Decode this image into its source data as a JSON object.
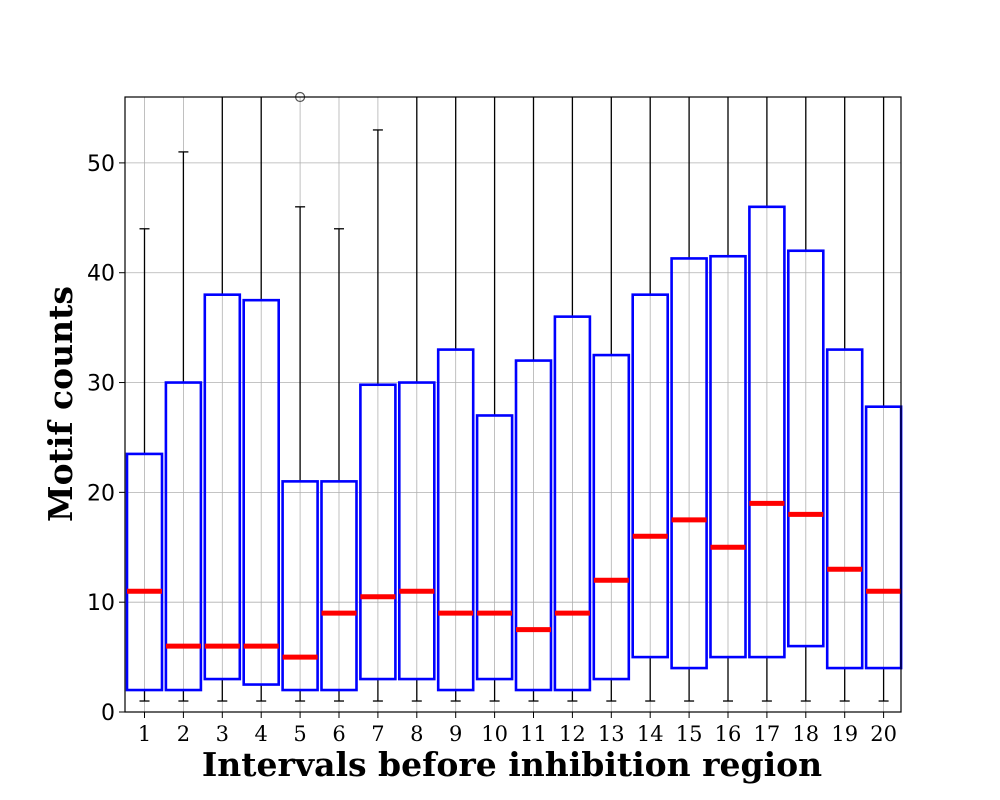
{
  "chart_data": {
    "type": "box",
    "title": "",
    "xlabel": "Intervals before inhibition region",
    "ylabel": "Motif counts",
    "categories": [
      "1",
      "2",
      "3",
      "4",
      "5",
      "6",
      "7",
      "8",
      "9",
      "10",
      "11",
      "12",
      "13",
      "14",
      "15",
      "16",
      "17",
      "18",
      "19",
      "20"
    ],
    "ylim": [
      0,
      56
    ],
    "yticks": [
      0,
      10,
      20,
      30,
      40,
      50
    ],
    "grid": true,
    "colors": {
      "box": "#0000ff",
      "median": "#ff0000",
      "whisker": "#000000",
      "grid": "#b0b0b0",
      "outlier": "#555555"
    },
    "boxes": [
      {
        "category": "1",
        "q1": 2,
        "median": 11,
        "q3": 23.5,
        "whisker_low": 1,
        "whisker_high": 44,
        "outliers": []
      },
      {
        "category": "2",
        "q1": 2,
        "median": 6,
        "q3": 30,
        "whisker_low": 1,
        "whisker_high": 51,
        "outliers": []
      },
      {
        "category": "3",
        "q1": 3,
        "median": 6,
        "q3": 38,
        "whisker_low": 1,
        "whisker_high": 56,
        "outliers": []
      },
      {
        "category": "4",
        "q1": 2.5,
        "median": 6,
        "q3": 37.5,
        "whisker_low": 1,
        "whisker_high": 56,
        "outliers": []
      },
      {
        "category": "5",
        "q1": 2,
        "median": 5,
        "q3": 21,
        "whisker_low": 1,
        "whisker_high": 46,
        "outliers": [
          56
        ]
      },
      {
        "category": "6",
        "q1": 2,
        "median": 9,
        "q3": 21,
        "whisker_low": 1,
        "whisker_high": 44,
        "outliers": []
      },
      {
        "category": "7",
        "q1": 3,
        "median": 10.5,
        "q3": 29.8,
        "whisker_low": 1,
        "whisker_high": 53,
        "outliers": []
      },
      {
        "category": "8",
        "q1": 3,
        "median": 11,
        "q3": 30,
        "whisker_low": 1,
        "whisker_high": 56,
        "outliers": []
      },
      {
        "category": "9",
        "q1": 2,
        "median": 9,
        "q3": 33,
        "whisker_low": 1,
        "whisker_high": 56,
        "outliers": []
      },
      {
        "category": "10",
        "q1": 3,
        "median": 9,
        "q3": 27,
        "whisker_low": 1,
        "whisker_high": 56,
        "outliers": []
      },
      {
        "category": "11",
        "q1": 2,
        "median": 7.5,
        "q3": 32,
        "whisker_low": 1,
        "whisker_high": 56,
        "outliers": []
      },
      {
        "category": "12",
        "q1": 2,
        "median": 9,
        "q3": 36,
        "whisker_low": 1,
        "whisker_high": 56,
        "outliers": []
      },
      {
        "category": "13",
        "q1": 3,
        "median": 12,
        "q3": 32.5,
        "whisker_low": 1,
        "whisker_high": 56,
        "outliers": []
      },
      {
        "category": "14",
        "q1": 5,
        "median": 16,
        "q3": 38,
        "whisker_low": 1,
        "whisker_high": 56,
        "outliers": []
      },
      {
        "category": "15",
        "q1": 4,
        "median": 17.5,
        "q3": 41.3,
        "whisker_low": 1,
        "whisker_high": 56,
        "outliers": []
      },
      {
        "category": "16",
        "q1": 5,
        "median": 15,
        "q3": 41.5,
        "whisker_low": 1,
        "whisker_high": 56,
        "outliers": []
      },
      {
        "category": "17",
        "q1": 5,
        "median": 19,
        "q3": 46,
        "whisker_low": 1,
        "whisker_high": 56,
        "outliers": []
      },
      {
        "category": "18",
        "q1": 6,
        "median": 18,
        "q3": 42,
        "whisker_low": 1,
        "whisker_high": 56,
        "outliers": []
      },
      {
        "category": "19",
        "q1": 4,
        "median": 13,
        "q3": 33,
        "whisker_low": 1,
        "whisker_high": 56,
        "outliers": []
      },
      {
        "category": "20",
        "q1": 4,
        "median": 11,
        "q3": 27.8,
        "whisker_low": 1,
        "whisker_high": 56,
        "outliers": []
      }
    ]
  }
}
